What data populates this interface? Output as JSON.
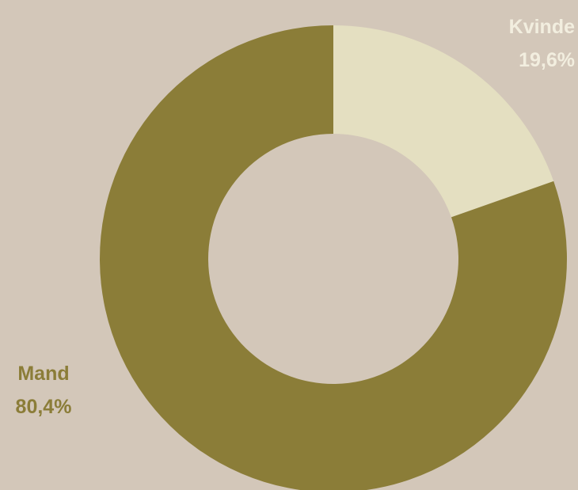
{
  "chart_data": {
    "type": "pie",
    "variant": "donut",
    "slices": [
      {
        "label": "Kvinde",
        "value": 19.6,
        "value_label": "19,6%",
        "color": "#e4dfc1",
        "label_color": "#f2eedf"
      },
      {
        "label": "Mand",
        "value": 80.4,
        "value_label": "80,4%",
        "color": "#8b7d38",
        "label_color": "#8b7d38"
      }
    ],
    "start": "12 o'clock",
    "direction": "clockwise",
    "legend": "none"
  },
  "colors": {
    "background": "#d3c7b9"
  }
}
